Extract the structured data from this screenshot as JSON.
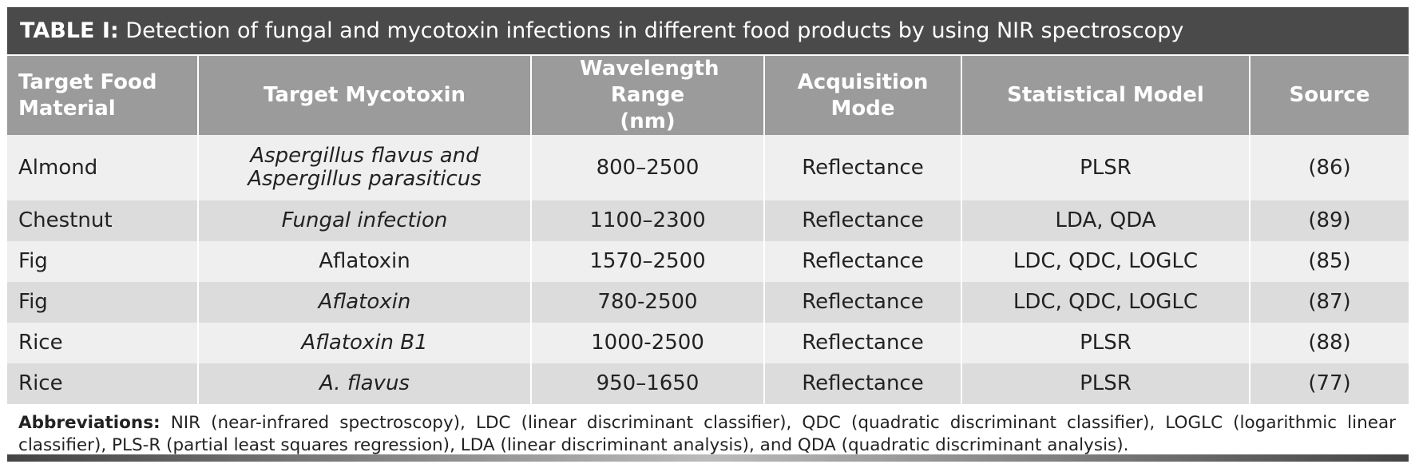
{
  "title": {
    "label": "TABLE I:",
    "text": "Detection of fungal and mycotoxin infections in different food products by using NIR spectroscopy"
  },
  "table": {
    "header": [
      "Target Food Material",
      "Target Mycotoxin",
      "Wavelength Range (nm)",
      "Acquisition Mode",
      "Statistical Model",
      "Source"
    ],
    "rows": [
      [
        "Almond",
        "Aspergillus flavus and Aspergillus parasiticus",
        "800–2500",
        "Reflectance",
        "PLSR",
        "(86)"
      ],
      [
        "Chestnut",
        "Fungal infection",
        "1100–2300",
        "Reflectance",
        "LDA, QDA",
        "(89)"
      ],
      [
        "Fig",
        "Aflatoxin",
        "1570–2500",
        "Reflectance",
        "LDC, QDC, LOGLC",
        "(85)"
      ],
      [
        "Fig",
        "Aflatoxin",
        "780-2500",
        "Reflectance",
        "LDC, QDC, LOGLC",
        "(87)"
      ],
      [
        "Rice",
        "Aflatoxin B1",
        "1000-2500",
        "Reflectance",
        "PLSR",
        "(88)"
      ],
      [
        "Rice",
        "A. flavus",
        "950–1650",
        "Reflectance",
        "PLSR",
        "(77)"
      ]
    ]
  },
  "footer": {
    "label": "Abbreviations:",
    "text": "NIR (near-infrared spectroscopy), LDC (linear discriminant classifier), QDC (quadratic discriminant classifier), LOGLC (logarithmic linear classifier), PLS-R (partial least squares regression), LDA (linear discriminant analysis), and QDA (quadratic discriminant analysis)."
  }
}
